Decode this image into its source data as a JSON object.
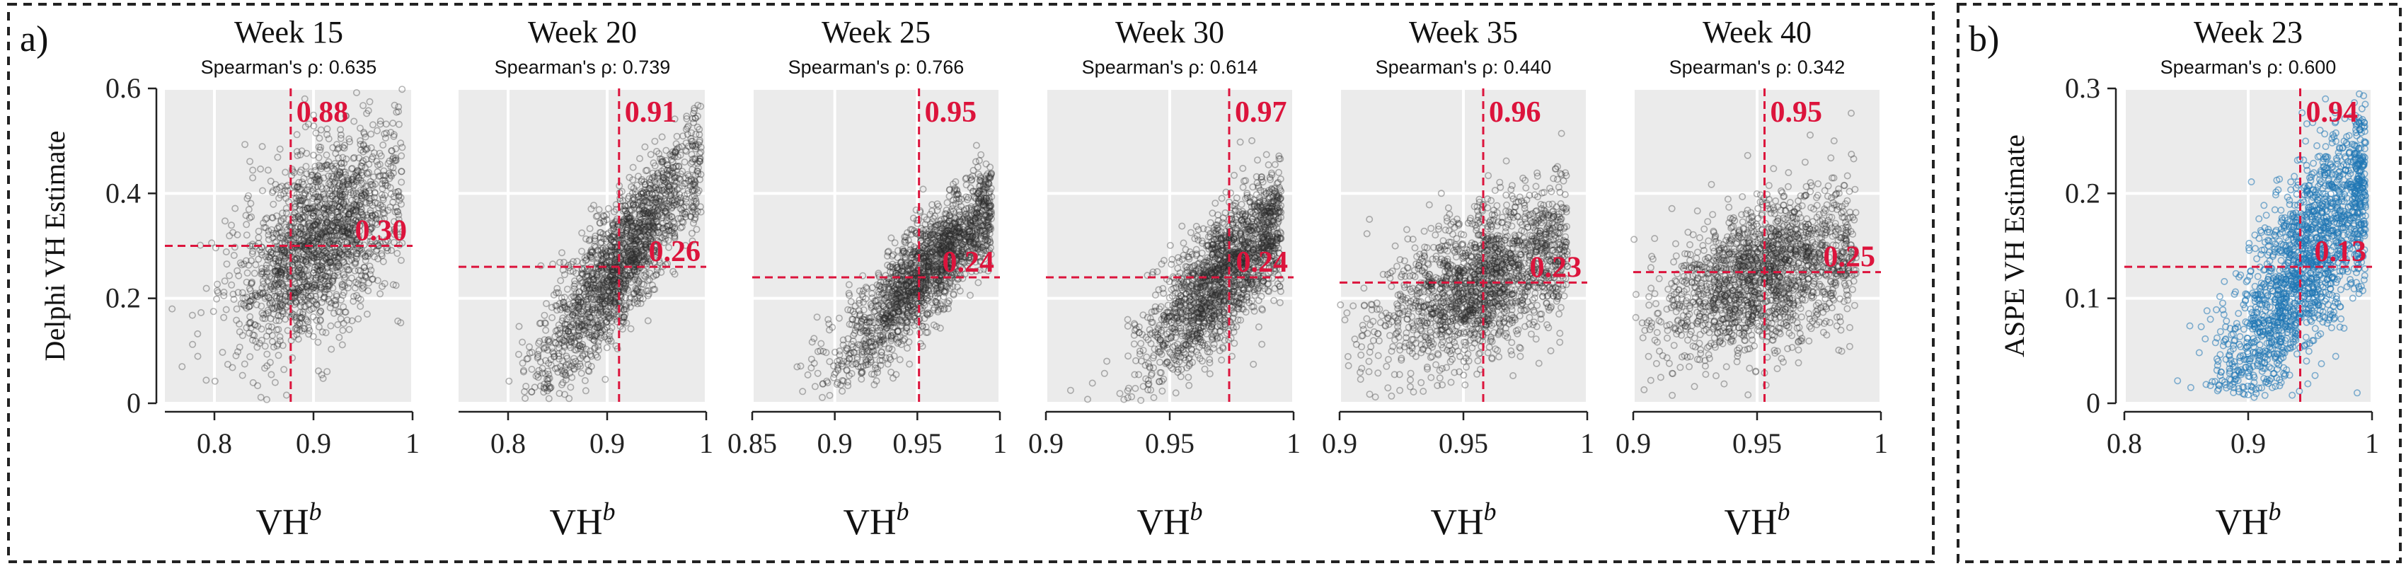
{
  "figure": {
    "group_a_label": "a)",
    "group_b_label": "b)",
    "grey_point_color": "#2b2b2b",
    "blue_point_color": "#1f77b4",
    "annotation_color": "#dc143c"
  },
  "chart_data": [
    {
      "type": "scatter",
      "group": "a",
      "title": "Week 15",
      "subtitle": "Spearman's ρ: 0.635",
      "xlabel": "VH",
      "xlabel_sup": "b",
      "ylabel": "Delphi VH Estimate",
      "xlim": [
        0.75,
        1.0
      ],
      "ylim": [
        0,
        0.6
      ],
      "xticks": [
        0.8,
        0.9,
        1.0
      ],
      "xtick_labels": [
        "0.8",
        "0.9",
        "1"
      ],
      "yticks": [
        0,
        0.2,
        0.4,
        0.6
      ],
      "ytick_labels": [
        "0",
        "0.2",
        "0.4",
        "0.6"
      ],
      "x_threshold": 0.877,
      "y_threshold": 0.3,
      "top_label": "0.88",
      "right_label": "0.30",
      "cloud": {
        "n": 1800,
        "x_center": 0.905,
        "x_sd": 0.04,
        "slope": 1.3,
        "y_center": 0.31,
        "y_sd": 0.085,
        "x_max": 0.99
      },
      "point_color": "grey"
    },
    {
      "type": "scatter",
      "group": "a",
      "title": "Week 20",
      "subtitle": "Spearman's ρ: 0.739",
      "xlabel": "VH",
      "xlabel_sup": "b",
      "xlim": [
        0.75,
        1.0
      ],
      "ylim": [
        0,
        0.6
      ],
      "xticks": [
        0.8,
        0.9,
        1.0
      ],
      "xtick_labels": [
        "0.8",
        "0.9",
        "1"
      ],
      "x_threshold": 0.912,
      "y_threshold": 0.26,
      "top_label": "0.91",
      "right_label": "0.26",
      "cloud": {
        "n": 1800,
        "x_center": 0.915,
        "x_sd": 0.04,
        "slope": 2.4,
        "y_center": 0.27,
        "y_sd": 0.06,
        "x_max": 0.995
      },
      "point_color": "grey"
    },
    {
      "type": "scatter",
      "group": "a",
      "title": "Week 25",
      "subtitle": "Spearman's ρ: 0.766",
      "xlabel": "VH",
      "xlabel_sup": "b",
      "xlim": [
        0.85,
        1.0
      ],
      "ylim": [
        0,
        0.6
      ],
      "xticks": [
        0.85,
        0.9,
        0.95,
        1.0
      ],
      "xtick_labels": [
        "0.85",
        "0.9",
        "0.95",
        "1"
      ],
      "x_threshold": 0.951,
      "y_threshold": 0.24,
      "top_label": "0.95",
      "right_label": "0.24",
      "cloud": {
        "n": 1800,
        "x_center": 0.955,
        "x_sd": 0.025,
        "slope": 3.2,
        "y_center": 0.25,
        "y_sd": 0.05,
        "x_max": 0.995
      },
      "point_color": "grey"
    },
    {
      "type": "scatter",
      "group": "a",
      "title": "Week 30",
      "subtitle": "Spearman's ρ: 0.614",
      "xlabel": "VH",
      "xlabel_sup": "b",
      "xlim": [
        0.9,
        1.0
      ],
      "ylim": [
        0,
        0.6
      ],
      "xticks": [
        0.9,
        0.95,
        1.0
      ],
      "xtick_labels": [
        "0.9",
        "0.95",
        "1"
      ],
      "x_threshold": 0.974,
      "y_threshold": 0.24,
      "top_label": "0.97",
      "right_label": "0.24",
      "cloud": {
        "n": 1800,
        "x_center": 0.972,
        "x_sd": 0.016,
        "slope": 4.5,
        "y_center": 0.245,
        "y_sd": 0.06,
        "x_max": 0.995
      },
      "point_color": "grey"
    },
    {
      "type": "scatter",
      "group": "a",
      "title": "Week 35",
      "subtitle": "Spearman's ρ: 0.440",
      "xlabel": "VH",
      "xlabel_sup": "b",
      "xlim": [
        0.9,
        1.0
      ],
      "ylim": [
        0,
        0.6
      ],
      "xticks": [
        0.9,
        0.95,
        1.0
      ],
      "xtick_labels": [
        "0.9",
        "0.95",
        "1"
      ],
      "x_threshold": 0.958,
      "y_threshold": 0.23,
      "top_label": "0.96",
      "right_label": "0.23",
      "cloud": {
        "n": 1800,
        "x_center": 0.958,
        "x_sd": 0.02,
        "slope": 2.0,
        "y_center": 0.235,
        "y_sd": 0.07,
        "x_max": 0.992
      },
      "point_color": "grey"
    },
    {
      "type": "scatter",
      "group": "a",
      "title": "Week 40",
      "subtitle": "Spearman's ρ: 0.342",
      "xlabel": "VH",
      "xlabel_sup": "b",
      "xlim": [
        0.9,
        1.0
      ],
      "ylim": [
        0,
        0.6
      ],
      "xticks": [
        0.9,
        0.95,
        1.0
      ],
      "xtick_labels": [
        "0.9",
        "0.95",
        "1"
      ],
      "x_threshold": 0.953,
      "y_threshold": 0.25,
      "top_label": "0.95",
      "right_label": "0.25",
      "cloud": {
        "n": 1800,
        "x_center": 0.953,
        "x_sd": 0.02,
        "slope": 1.6,
        "y_center": 0.245,
        "y_sd": 0.07,
        "x_max": 0.99
      },
      "point_color": "grey"
    },
    {
      "type": "scatter",
      "group": "b",
      "title": "Week 23",
      "subtitle": "Spearman's ρ: 0.600",
      "xlabel": "VH",
      "xlabel_sup": "b",
      "ylabel": "ASPE VH Estimate",
      "xlim": [
        0.8,
        1.0
      ],
      "ylim": [
        0,
        0.3
      ],
      "xticks": [
        0.8,
        0.9,
        1.0
      ],
      "xtick_labels": [
        "0.8",
        "0.9",
        "1"
      ],
      "yticks": [
        0,
        0.1,
        0.2,
        0.3
      ],
      "ytick_labels": [
        "0",
        "0.1",
        "0.2",
        "0.3"
      ],
      "x_threshold": 0.942,
      "y_threshold": 0.13,
      "top_label": "0.94",
      "right_label": "0.13",
      "cloud": {
        "n": 1800,
        "x_center": 0.945,
        "x_sd": 0.035,
        "slope": 1.6,
        "y_center": 0.13,
        "y_sd": 0.045,
        "x_max": 0.995
      },
      "point_color": "blue"
    }
  ]
}
